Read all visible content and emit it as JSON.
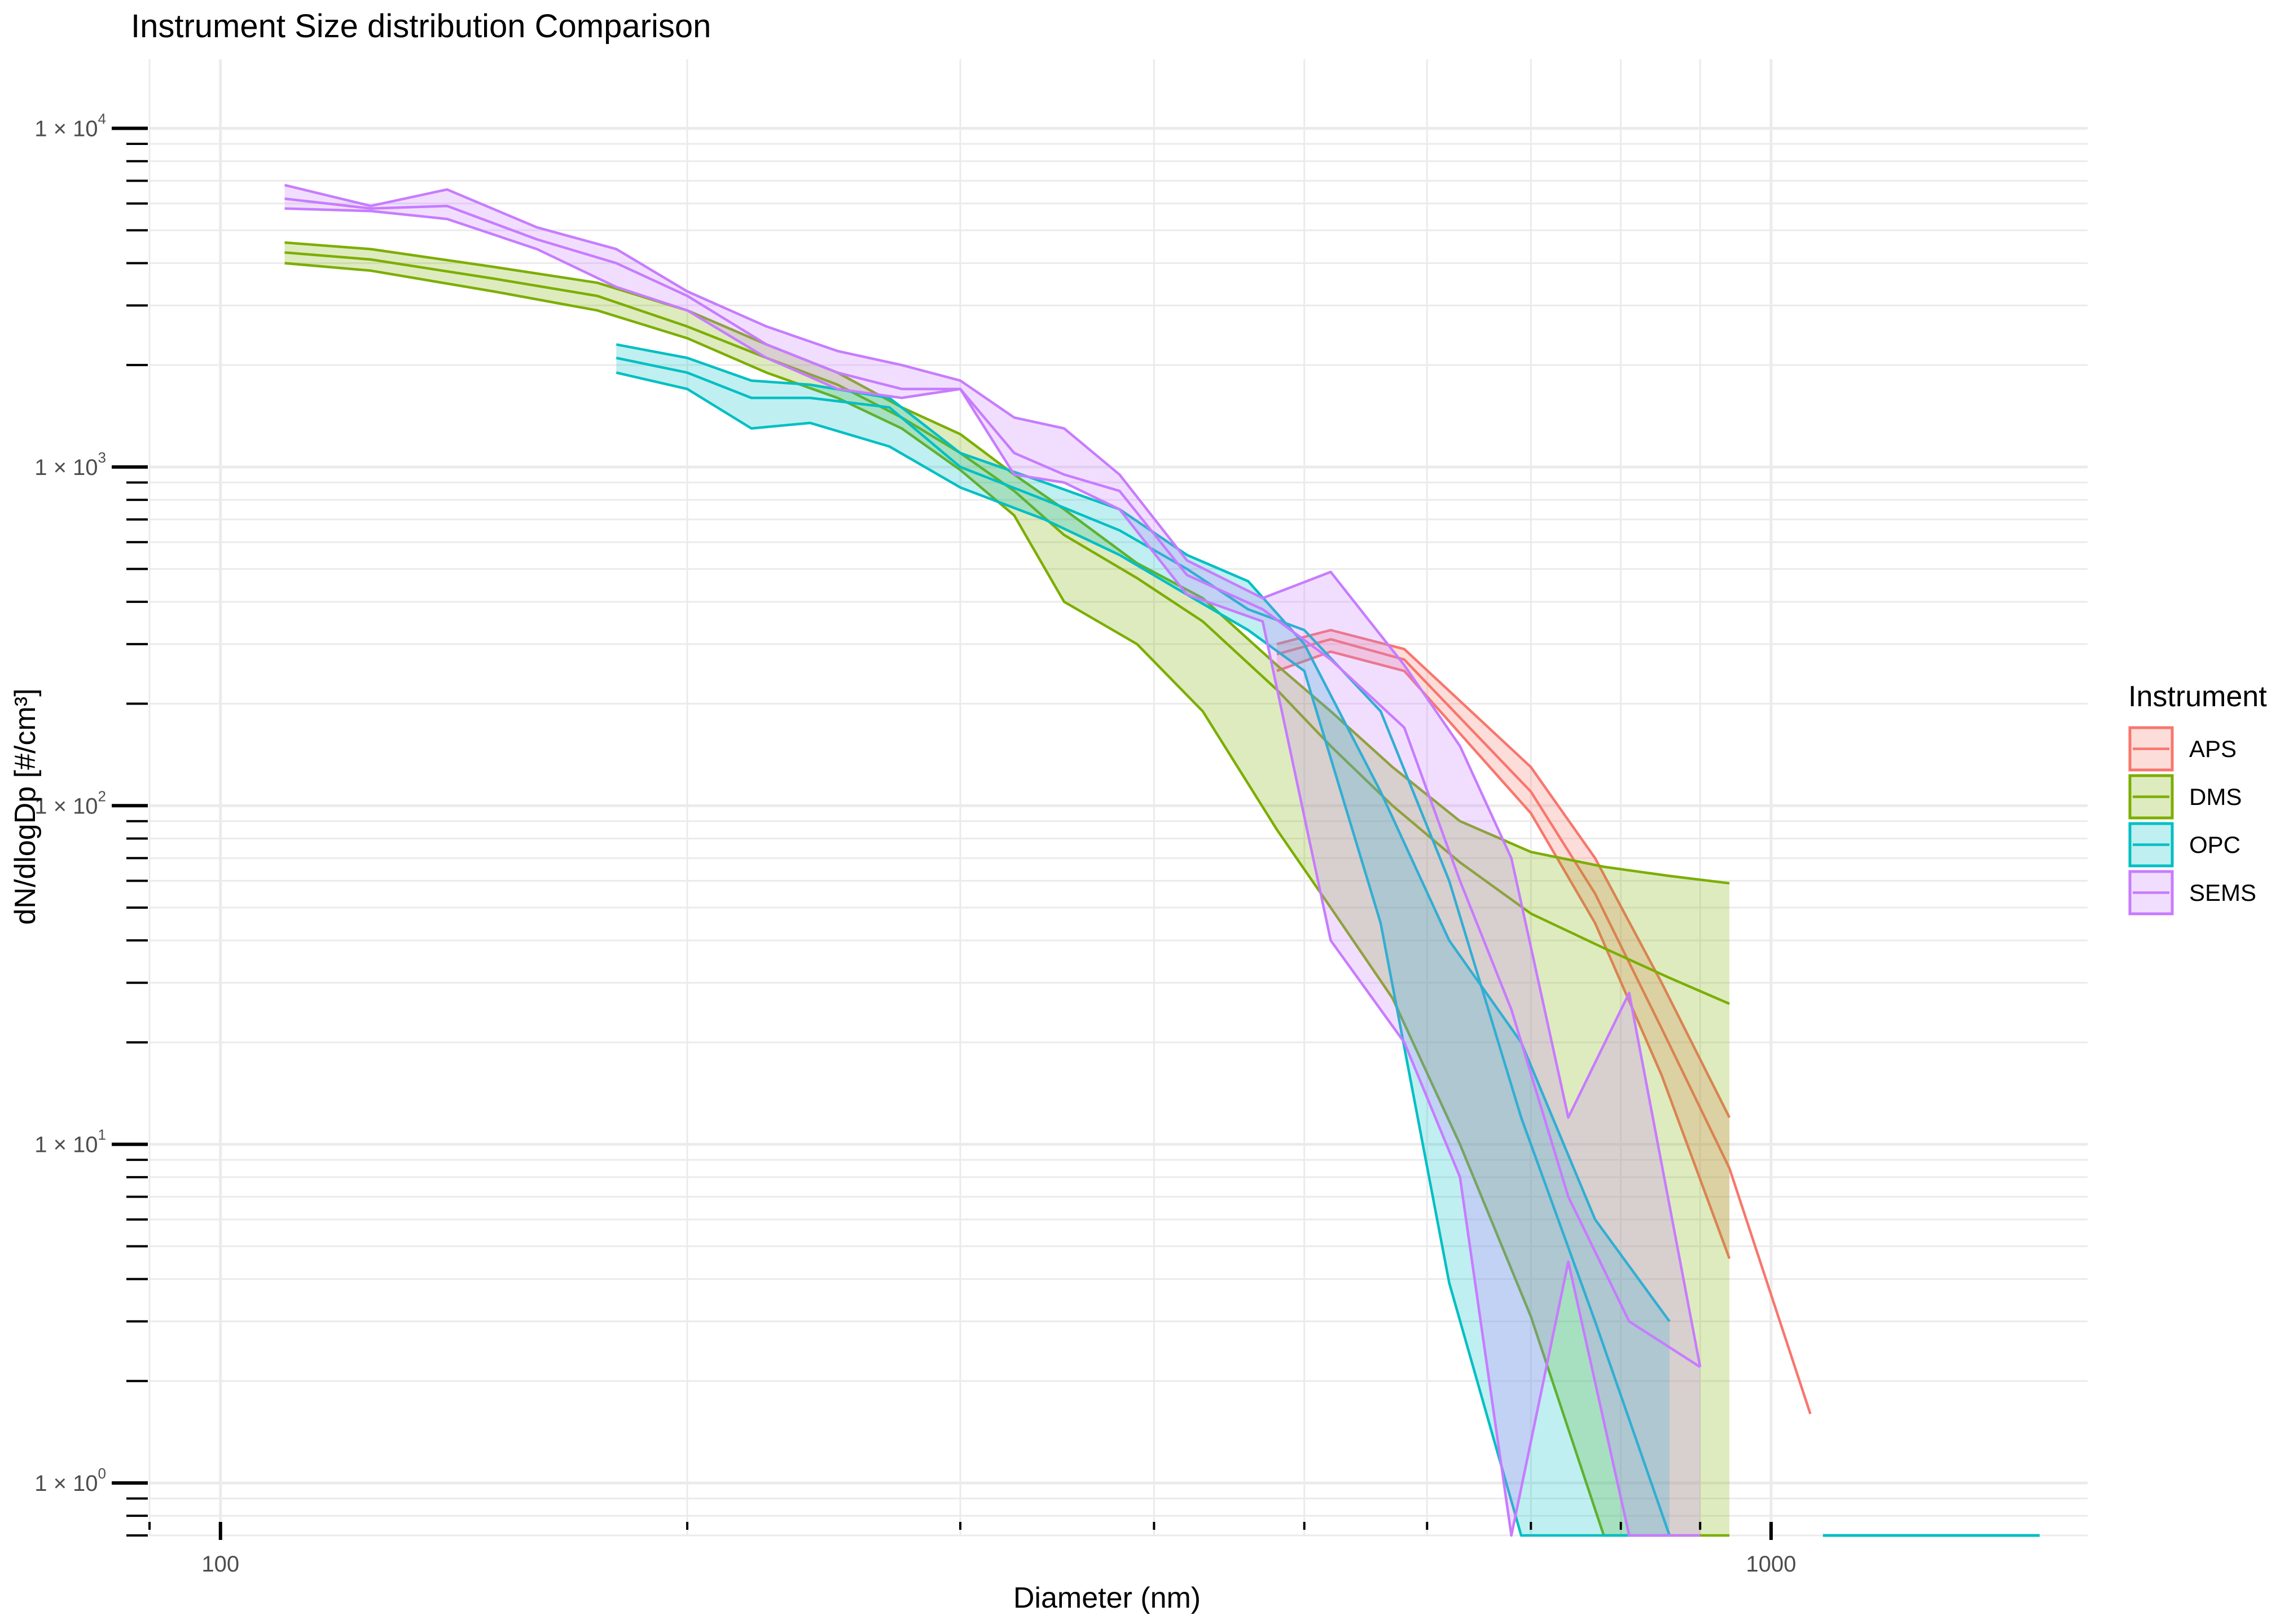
{
  "chart_data": {
    "type": "area",
    "title": "Instrument Size distribution Comparison",
    "xlabel": "Diameter (nm)",
    "ylabel": "dN/dlogDp [#/cm³]",
    "x_scale": "log10",
    "y_scale": "log10",
    "xlim": [
      90,
      1600
    ],
    "ylim": [
      0.7,
      16000
    ],
    "x_tick_labels": [
      {
        "value": 100,
        "label": "100"
      },
      {
        "value": 1000,
        "label": "1000"
      }
    ],
    "y_tick_labels": [
      {
        "value": 1,
        "mantissa": "1 × 10",
        "exp": "0"
      },
      {
        "value": 10,
        "mantissa": "1 × 10",
        "exp": "1"
      },
      {
        "value": 100,
        "mantissa": "1 × 10",
        "exp": "2"
      },
      {
        "value": 1000,
        "mantissa": "1 × 10",
        "exp": "3"
      },
      {
        "value": 10000,
        "mantissa": "1 × 10",
        "exp": "4"
      }
    ],
    "grid": true,
    "legend": {
      "title": "Instrument",
      "position": "right"
    },
    "series": [
      {
        "name": "APS",
        "color": "#F8766D",
        "x": [
          480,
          520,
          580,
          700,
          770,
          850,
          940
        ],
        "mid": [
          280,
          310,
          270,
          110,
          55,
          22,
          8.5
        ],
        "upper": [
          300,
          330,
          290,
          130,
          70,
          30,
          12
        ],
        "lower": [
          250,
          285,
          250,
          95,
          45,
          16,
          4.6
        ],
        "extension_x": [
          940,
          1060
        ],
        "extension_y": [
          8.5,
          1.6
        ]
      },
      {
        "name": "DMS",
        "color": "#7CAE00",
        "x": [
          110,
          125,
          150,
          175,
          200,
          225,
          250,
          275,
          300,
          325,
          350,
          390,
          430,
          480,
          520,
          570,
          630,
          700,
          780,
          860,
          940
        ],
        "mid": [
          4300,
          4100,
          3600,
          3200,
          2600,
          2100,
          1750,
          1400,
          1100,
          850,
          630,
          470,
          350,
          220,
          150,
          100,
          68,
          48,
          38,
          31,
          26
        ],
        "upper": [
          4600,
          4400,
          3900,
          3500,
          2900,
          2300,
          1900,
          1500,
          1250,
          950,
          750,
          520,
          410,
          260,
          190,
          130,
          90,
          73,
          66,
          62,
          59
        ],
        "lower": [
          4000,
          3800,
          3300,
          2900,
          2400,
          1900,
          1600,
          1300,
          980,
          720,
          400,
          300,
          190,
          85,
          50,
          27,
          10,
          3.1,
          0.6,
          0.6,
          0.6
        ]
      },
      {
        "name": "OPC",
        "color": "#00BFC4",
        "x": [
          180,
          200,
          220,
          240,
          270,
          300,
          340,
          380,
          420,
          460,
          500,
          560,
          620,
          690,
          770,
          860
        ],
        "mid": [
          2100,
          1900,
          1600,
          1600,
          1500,
          1000,
          800,
          650,
          500,
          380,
          330,
          190,
          60,
          12,
          3.0,
          0.6
        ],
        "upper": [
          2300,
          2100,
          1800,
          1750,
          1600,
          1100,
          900,
          750,
          550,
          460,
          300,
          110,
          40,
          20,
          6.0,
          3.0
        ],
        "lower": [
          1900,
          1700,
          1300,
          1350,
          1150,
          870,
          700,
          550,
          420,
          330,
          250,
          45,
          3.9,
          0.6,
          0.6,
          0.6
        ]
      },
      {
        "name": "SEMS",
        "color": "#C77CFF",
        "x": [
          110,
          125,
          140,
          160,
          180,
          200,
          225,
          250,
          275,
          300,
          325,
          350,
          380,
          420,
          470,
          520,
          580,
          630,
          680,
          740,
          810,
          900
        ],
        "mid": [
          6200,
          5800,
          5900,
          4700,
          4000,
          3200,
          2300,
          1900,
          1700,
          1700,
          1100,
          950,
          850,
          480,
          380,
          270,
          170,
          60,
          25,
          7.0,
          3.0,
          2.2
        ],
        "upper": [
          6800,
          5900,
          6600,
          5100,
          4400,
          3300,
          2600,
          2200,
          2000,
          1800,
          1400,
          1300,
          950,
          530,
          410,
          490,
          260,
          150,
          70,
          12,
          28,
          2.2
        ],
        "lower": [
          5800,
          5700,
          5400,
          4400,
          3400,
          2900,
          2100,
          1700,
          1600,
          1700,
          950,
          900,
          750,
          420,
          350,
          40,
          20,
          8.0,
          0.6,
          4.5,
          0.6,
          0.6
        ]
      },
      {
        "name": "OPC",
        "color": "#00BFC4",
        "segment_x": [
          1080,
          1490
        ],
        "segment_y": [
          0.62,
          0.62
        ]
      }
    ]
  }
}
